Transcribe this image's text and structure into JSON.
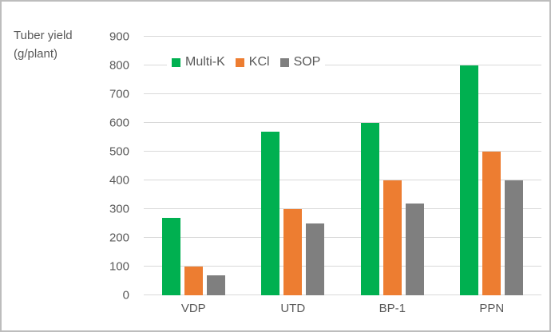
{
  "chart_data": {
    "type": "bar",
    "title": "Tuber yield (g/plant)",
    "axis_title_lines": [
      "Tuber yield",
      "(g/plant)"
    ],
    "categories": [
      "VDP",
      "UTD",
      "BP-1",
      "PPN"
    ],
    "series": [
      {
        "name": "Multi-K",
        "color": "#00B050",
        "values": [
          270,
          570,
          600,
          800
        ]
      },
      {
        "name": "KCl",
        "color": "#ED7D31",
        "values": [
          100,
          300,
          400,
          500
        ]
      },
      {
        "name": "SOP",
        "color": "#7F7F7F",
        "values": [
          70,
          250,
          320,
          400
        ]
      }
    ],
    "ylim": [
      0,
      900
    ],
    "yticks": [
      0,
      100,
      200,
      300,
      400,
      500,
      600,
      700,
      800,
      900
    ],
    "xlabel": "",
    "ylabel": "Tuber yield (g/plant)",
    "grid": true,
    "legend_position": "top"
  },
  "colors": {
    "grid": "#D9D9D9",
    "axis_text": "#595959",
    "border": "#BDBDBD",
    "background": "#FFFFFF"
  }
}
